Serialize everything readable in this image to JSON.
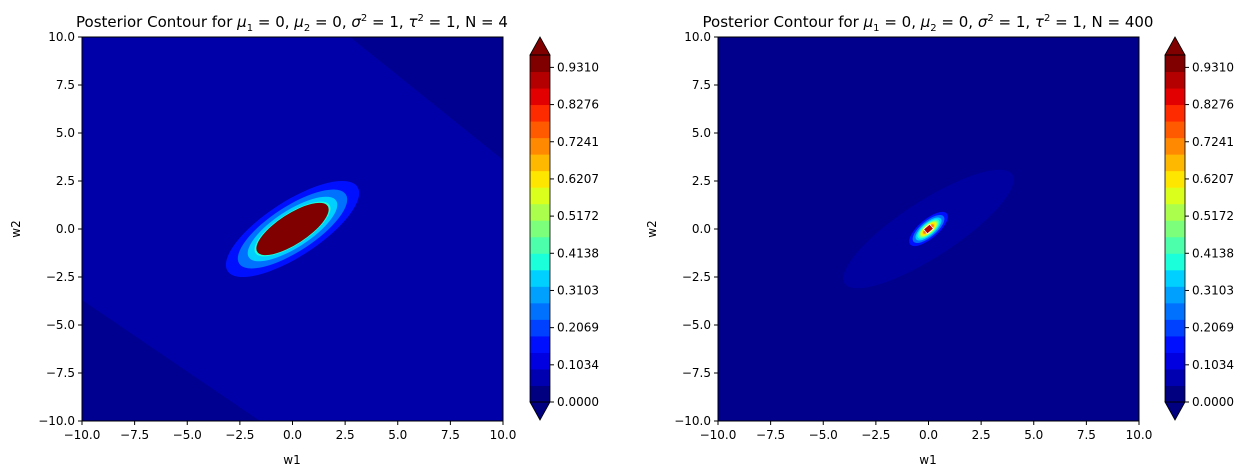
{
  "chart_data": [
    {
      "type": "contour",
      "title": "Posterior Contour for μ1 = 0, μ2 = 0, σ2 = 1, τ2 = 1, N = 4",
      "title_parts": {
        "prefix": "Posterior Contour for ",
        "mu1": "1",
        "mu2": "2",
        "sigma_sup": "2",
        "tau_sup": "2",
        "eq": " = 0, ",
        "eq1": " = 1, ",
        "n": "N = 4"
      },
      "xlabel": "w1",
      "ylabel": "w2",
      "xlim": [
        -10,
        10
      ],
      "ylim": [
        -10,
        10
      ],
      "x_ticks": [
        "−10.0",
        "−7.5",
        "−5.0",
        "−2.5",
        "0.0",
        "2.5",
        "5.0",
        "7.5",
        "10.0"
      ],
      "y_ticks": [
        "−10.0",
        "−7.5",
        "−5.0",
        "−2.5",
        "0.0",
        "2.5",
        "5.0",
        "7.5",
        "10.0"
      ],
      "distribution": {
        "mean": [
          0,
          0
        ],
        "minor_std": 0.55,
        "major_std": 1.55,
        "orientation_deg": -33,
        "peak_region": "ellipse about 3 wide, 1.2 tall"
      },
      "colormap": "jet",
      "colorbar": {
        "ticks": [
          "0.0000",
          "0.1034",
          "0.2069",
          "0.3103",
          "0.4138",
          "0.5172",
          "0.6207",
          "0.7241",
          "0.8276",
          "0.9310"
        ],
        "extend": "both",
        "levels": 29
      }
    },
    {
      "type": "contour",
      "title": "Posterior Contour for μ1 = 0, μ2 = 0, σ2 = 1, τ2 = 1, N = 400",
      "title_parts": {
        "prefix": "Posterior Contour for ",
        "mu1": "1",
        "mu2": "2",
        "sigma_sup": "2",
        "tau_sup": "2",
        "eq": " = 0, ",
        "eq1": " = 1, ",
        "n": "N = 400"
      },
      "xlabel": "w1",
      "ylabel": "w2",
      "xlim": [
        -10,
        10
      ],
      "ylim": [
        -10,
        10
      ],
      "x_ticks": [
        "−10.0",
        "−7.5",
        "−5.0",
        "−2.5",
        "0.0",
        "2.5",
        "5.0",
        "7.5",
        "10.0"
      ],
      "y_ticks": [
        "−10.0",
        "−7.5",
        "−5.0",
        "−2.5",
        "0.0",
        "2.5",
        "5.0",
        "7.5",
        "10.0"
      ],
      "distribution": {
        "mean": [
          0,
          0
        ],
        "minor_std": 0.06,
        "major_std": 0.15,
        "orientation_deg": -37,
        "peak_region": "tiny blob at origin"
      },
      "colormap": "jet",
      "colorbar": {
        "ticks": [
          "0.0000",
          "0.1034",
          "0.2069",
          "0.3103",
          "0.4138",
          "0.5172",
          "0.6207",
          "0.7241",
          "0.8276",
          "0.9310"
        ],
        "extend": "both",
        "levels": 29
      }
    }
  ],
  "jet_colors": [
    "#000080",
    "#0000b0",
    "#0000e0",
    "#0010ff",
    "#0040ff",
    "#0070ff",
    "#00a0ff",
    "#00d0ff",
    "#1cffdb",
    "#4cffab",
    "#7cff7b",
    "#abff4c",
    "#dbff1c",
    "#ffe600",
    "#ffb800",
    "#ff8900",
    "#ff5a00",
    "#ff2b00",
    "#e30000",
    "#b40000",
    "#800000"
  ]
}
